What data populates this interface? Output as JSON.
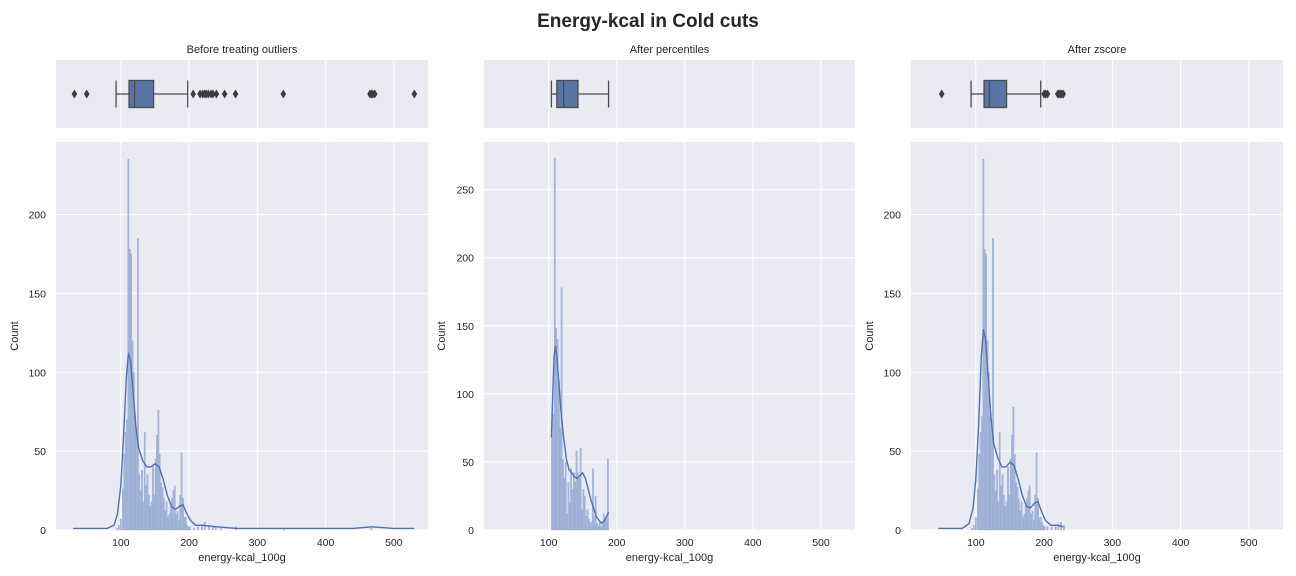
{
  "figure": {
    "title": "Energy-kcal in Cold cuts",
    "colors": {
      "panel_bg": "#eaeaf2",
      "grid": "#ffffff",
      "bar_fill": "#a3b4d9",
      "bar_edge": "#8fa3cf",
      "kde_line": "#4c72b0",
      "box_fill": "#5975a4",
      "box_line": "#4d4d4d",
      "flier": "#3d3d3d"
    }
  },
  "chart_data": [
    {
      "type": "histogram",
      "title": "Before treating outliers",
      "xlabel": "energy-kcal_100g",
      "ylabel": "Count",
      "xlim": [
        5,
        550
      ],
      "ylim": [
        0,
        246
      ],
      "xticks": [
        100,
        200,
        300,
        400,
        500
      ],
      "yticks": [
        0,
        50,
        100,
        150,
        200
      ],
      "grid": true,
      "boxplot": {
        "whisker_low": 93,
        "q1": 112,
        "median": 120,
        "q3": 148,
        "whisker_high": 198,
        "fliers": [
          32,
          50,
          206,
          216,
          220,
          223,
          225,
          228,
          232,
          235,
          240,
          252,
          268,
          338,
          465,
          467,
          469,
          472,
          530
        ]
      },
      "histogram": {
        "bins": [
          [
            93,
            1
          ],
          [
            96,
            3
          ],
          [
            99,
            7
          ],
          [
            102,
            26
          ],
          [
            104,
            48
          ],
          [
            106,
            62
          ],
          [
            108,
            70
          ],
          [
            110,
            235
          ],
          [
            112,
            178
          ],
          [
            114,
            175
          ],
          [
            116,
            120
          ],
          [
            118,
            100
          ],
          [
            120,
            73
          ],
          [
            122,
            65
          ],
          [
            124,
            185
          ],
          [
            126,
            35
          ],
          [
            128,
            25
          ],
          [
            130,
            38
          ],
          [
            132,
            18
          ],
          [
            134,
            62
          ],
          [
            136,
            28
          ],
          [
            138,
            35
          ],
          [
            140,
            22
          ],
          [
            142,
            15
          ],
          [
            144,
            18
          ],
          [
            146,
            40
          ],
          [
            148,
            22
          ],
          [
            150,
            45
          ],
          [
            152,
            60
          ],
          [
            154,
            76
          ],
          [
            156,
            48
          ],
          [
            158,
            30
          ],
          [
            160,
            27
          ],
          [
            162,
            20
          ],
          [
            164,
            12
          ],
          [
            166,
            18
          ],
          [
            168,
            8
          ],
          [
            170,
            10
          ],
          [
            172,
            15
          ],
          [
            174,
            20
          ],
          [
            176,
            25
          ],
          [
            178,
            28
          ],
          [
            180,
            10
          ],
          [
            182,
            12
          ],
          [
            184,
            6
          ],
          [
            186,
            22
          ],
          [
            188,
            49
          ],
          [
            190,
            20
          ],
          [
            192,
            8
          ],
          [
            194,
            8
          ],
          [
            196,
            3
          ],
          [
            198,
            2
          ],
          [
            200,
            2
          ],
          [
            206,
            1
          ],
          [
            212,
            2
          ],
          [
            218,
            3
          ],
          [
            222,
            5
          ],
          [
            228,
            3
          ],
          [
            234,
            2
          ],
          [
            238,
            2
          ],
          [
            246,
            1
          ],
          [
            268,
            2
          ],
          [
            338,
            1
          ],
          [
            466,
            1
          ]
        ]
      },
      "kde": [
        [
          30,
          1
        ],
        [
          60,
          1
        ],
        [
          80,
          1
        ],
        [
          90,
          3
        ],
        [
          95,
          10
        ],
        [
          100,
          28
        ],
        [
          104,
          60
        ],
        [
          108,
          96
        ],
        [
          111,
          112
        ],
        [
          114,
          108
        ],
        [
          118,
          88
        ],
        [
          122,
          65
        ],
        [
          126,
          52
        ],
        [
          132,
          44
        ],
        [
          138,
          40
        ],
        [
          144,
          40
        ],
        [
          150,
          42
        ],
        [
          156,
          40
        ],
        [
          162,
          32
        ],
        [
          168,
          22
        ],
        [
          174,
          15
        ],
        [
          180,
          13
        ],
        [
          186,
          15
        ],
        [
          191,
          16
        ],
        [
          196,
          11
        ],
        [
          202,
          6
        ],
        [
          210,
          3
        ],
        [
          220,
          3
        ],
        [
          240,
          2
        ],
        [
          270,
          1
        ],
        [
          340,
          1
        ],
        [
          440,
          1
        ],
        [
          468,
          2
        ],
        [
          500,
          1
        ],
        [
          530,
          1
        ]
      ]
    },
    {
      "type": "histogram",
      "title": "After percentiles",
      "xlabel": "energy-kcal_100g",
      "ylabel": "Count",
      "xlim": [
        5,
        550
      ],
      "ylim": [
        0,
        285
      ],
      "xticks": [
        100,
        200,
        300,
        400,
        500
      ],
      "yticks": [
        0,
        50,
        100,
        150,
        200,
        250
      ],
      "grid": true,
      "boxplot": {
        "whisker_low": 104,
        "q1": 112,
        "median": 122,
        "q3": 143,
        "whisker_high": 188,
        "fliers": []
      },
      "histogram": {
        "bins": [
          [
            104,
            70
          ],
          [
            106,
            85
          ],
          [
            108,
            273
          ],
          [
            110,
            148
          ],
          [
            112,
            140
          ],
          [
            114,
            110
          ],
          [
            116,
            75
          ],
          [
            118,
            178
          ],
          [
            120,
            52
          ],
          [
            122,
            38
          ],
          [
            124,
            50
          ],
          [
            126,
            12
          ],
          [
            128,
            35
          ],
          [
            130,
            20
          ],
          [
            132,
            45
          ],
          [
            134,
            30
          ],
          [
            136,
            42
          ],
          [
            138,
            35
          ],
          [
            140,
            58
          ],
          [
            142,
            42
          ],
          [
            144,
            38
          ],
          [
            146,
            60
          ],
          [
            148,
            15
          ],
          [
            150,
            30
          ],
          [
            152,
            25
          ],
          [
            154,
            10
          ],
          [
            156,
            15
          ],
          [
            158,
            8
          ],
          [
            160,
            5
          ],
          [
            162,
            6
          ],
          [
            164,
            45
          ],
          [
            166,
            10
          ],
          [
            168,
            25
          ],
          [
            170,
            5
          ],
          [
            172,
            3
          ],
          [
            174,
            6
          ],
          [
            176,
            2
          ],
          [
            178,
            4
          ],
          [
            180,
            12
          ],
          [
            182,
            8
          ],
          [
            184,
            10
          ],
          [
            186,
            52
          ]
        ]
      },
      "kde": [
        [
          104,
          68
        ],
        [
          106,
          100
        ],
        [
          108,
          128
        ],
        [
          110,
          135
        ],
        [
          112,
          128
        ],
        [
          115,
          108
        ],
        [
          118,
          88
        ],
        [
          122,
          68
        ],
        [
          126,
          52
        ],
        [
          130,
          44
        ],
        [
          134,
          42
        ],
        [
          138,
          39
        ],
        [
          142,
          38
        ],
        [
          146,
          40
        ],
        [
          150,
          42
        ],
        [
          154,
          38
        ],
        [
          158,
          30
        ],
        [
          162,
          22
        ],
        [
          166,
          16
        ],
        [
          170,
          10
        ],
        [
          174,
          7
        ],
        [
          178,
          5
        ],
        [
          182,
          7
        ],
        [
          186,
          11
        ],
        [
          188,
          13
        ]
      ]
    },
    {
      "type": "histogram",
      "title": "After zscore",
      "xlabel": "energy-kcal_100g",
      "ylabel": "Count",
      "xlim": [
        5,
        550
      ],
      "ylim": [
        0,
        246
      ],
      "xticks": [
        100,
        200,
        300,
        400,
        500
      ],
      "yticks": [
        0,
        50,
        100,
        150,
        200
      ],
      "grid": true,
      "boxplot": {
        "whisker_low": 93,
        "q1": 112,
        "median": 120,
        "q3": 145,
        "whisker_high": 195,
        "fliers": [
          50,
          200,
          202,
          205,
          220,
          222,
          224,
          226,
          228
        ]
      },
      "histogram": {
        "bins": [
          [
            93,
            1
          ],
          [
            96,
            3
          ],
          [
            99,
            8
          ],
          [
            102,
            26
          ],
          [
            104,
            48
          ],
          [
            106,
            62
          ],
          [
            108,
            72
          ],
          [
            110,
            235
          ],
          [
            112,
            178
          ],
          [
            114,
            175
          ],
          [
            116,
            120
          ],
          [
            118,
            100
          ],
          [
            120,
            73
          ],
          [
            122,
            65
          ],
          [
            124,
            185
          ],
          [
            126,
            35
          ],
          [
            128,
            25
          ],
          [
            130,
            38
          ],
          [
            132,
            18
          ],
          [
            134,
            62
          ],
          [
            136,
            28
          ],
          [
            138,
            35
          ],
          [
            140,
            22
          ],
          [
            142,
            15
          ],
          [
            144,
            18
          ],
          [
            146,
            40
          ],
          [
            148,
            22
          ],
          [
            150,
            45
          ],
          [
            152,
            60
          ],
          [
            154,
            78
          ],
          [
            156,
            48
          ],
          [
            158,
            30
          ],
          [
            160,
            27
          ],
          [
            162,
            20
          ],
          [
            164,
            12
          ],
          [
            166,
            18
          ],
          [
            168,
            8
          ],
          [
            170,
            10
          ],
          [
            172,
            15
          ],
          [
            174,
            20
          ],
          [
            176,
            25
          ],
          [
            178,
            28
          ],
          [
            180,
            10
          ],
          [
            182,
            12
          ],
          [
            184,
            6
          ],
          [
            186,
            22
          ],
          [
            188,
            49
          ],
          [
            190,
            20
          ],
          [
            192,
            8
          ],
          [
            194,
            8
          ],
          [
            196,
            5
          ],
          [
            198,
            3
          ],
          [
            200,
            2
          ],
          [
            204,
            2
          ],
          [
            210,
            2
          ],
          [
            216,
            3
          ],
          [
            220,
            4
          ],
          [
            224,
            5
          ],
          [
            228,
            3
          ]
        ]
      },
      "kde": [
        [
          45,
          1
        ],
        [
          60,
          1
        ],
        [
          80,
          1
        ],
        [
          90,
          4
        ],
        [
          96,
          14
        ],
        [
          100,
          32
        ],
        [
          104,
          66
        ],
        [
          108,
          110
        ],
        [
          111,
          127
        ],
        [
          114,
          122
        ],
        [
          118,
          98
        ],
        [
          122,
          72
        ],
        [
          126,
          55
        ],
        [
          132,
          46
        ],
        [
          138,
          40
        ],
        [
          144,
          40
        ],
        [
          150,
          43
        ],
        [
          156,
          41
        ],
        [
          162,
          32
        ],
        [
          168,
          22
        ],
        [
          174,
          15
        ],
        [
          180,
          14
        ],
        [
          186,
          17
        ],
        [
          191,
          18
        ],
        [
          196,
          12
        ],
        [
          202,
          6
        ],
        [
          210,
          3
        ],
        [
          220,
          3
        ],
        [
          228,
          2
        ]
      ]
    }
  ]
}
